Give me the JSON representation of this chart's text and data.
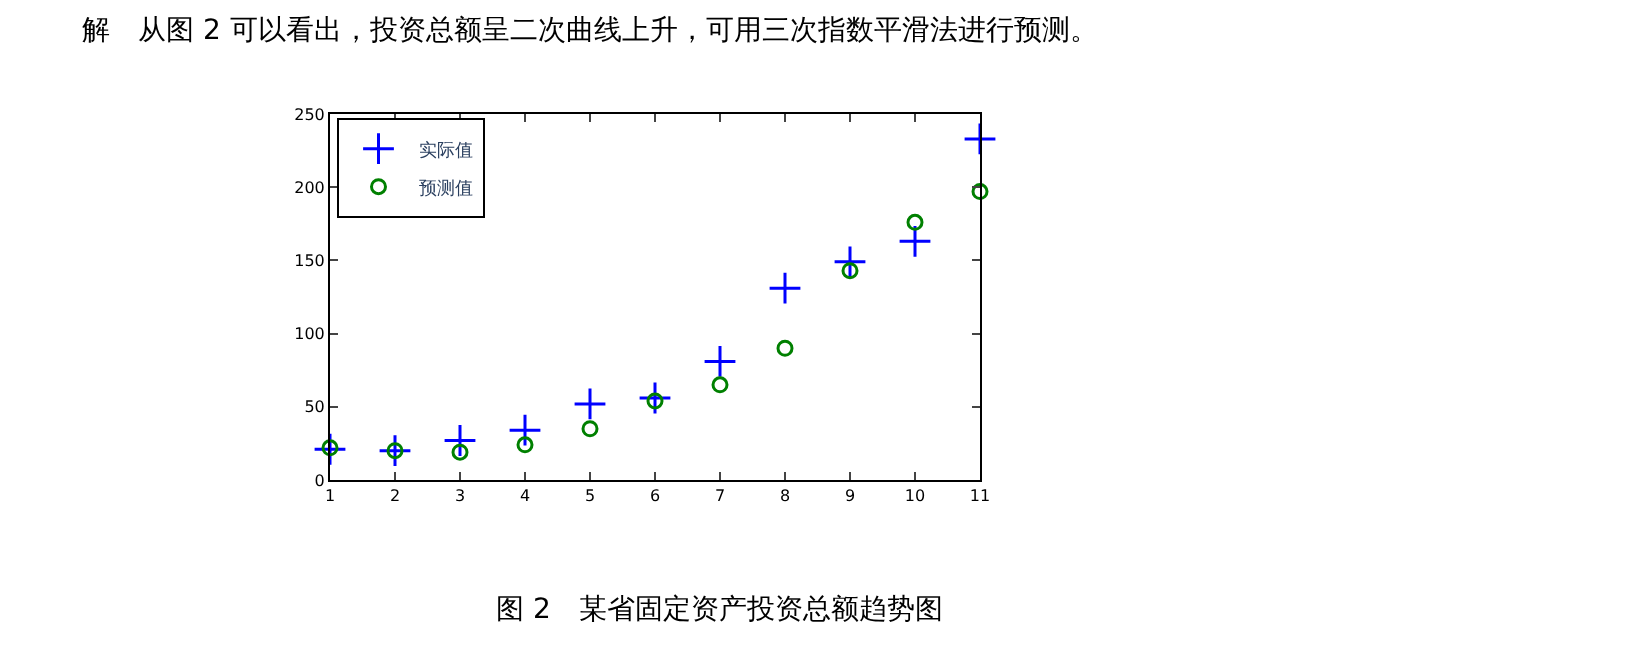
{
  "chart_data": {
    "type": "scatter",
    "title": "解　从图 2 可以看出，投资总额呈二次曲线上升，可用三次指数平滑法进行预测。",
    "annotations": [
      "图 2　某省固定资产投资总额趋势图"
    ],
    "x": [
      1,
      2,
      3,
      4,
      5,
      6,
      7,
      8,
      9,
      10,
      11
    ],
    "series": [
      {
        "name": "实际值",
        "color": "#0000ff",
        "marker": "cross",
        "values": [
          21,
          20,
          27,
          34,
          52,
          56,
          81,
          131,
          149,
          163,
          233
        ]
      },
      {
        "name": "预测值",
        "color": "#008000",
        "marker": "circle",
        "values": [
          22,
          20,
          19,
          24,
          35,
          54,
          65,
          90,
          143,
          176,
          197
        ]
      }
    ],
    "xlim": [
      1,
      11
    ],
    "xticks": [
      1,
      2,
      3,
      4,
      5,
      6,
      7,
      8,
      9,
      10,
      11
    ],
    "ylim": [
      0,
      250
    ],
    "yticks": [
      0,
      50,
      100,
      150,
      200,
      250
    ],
    "grid": false,
    "legend": "top left"
  }
}
